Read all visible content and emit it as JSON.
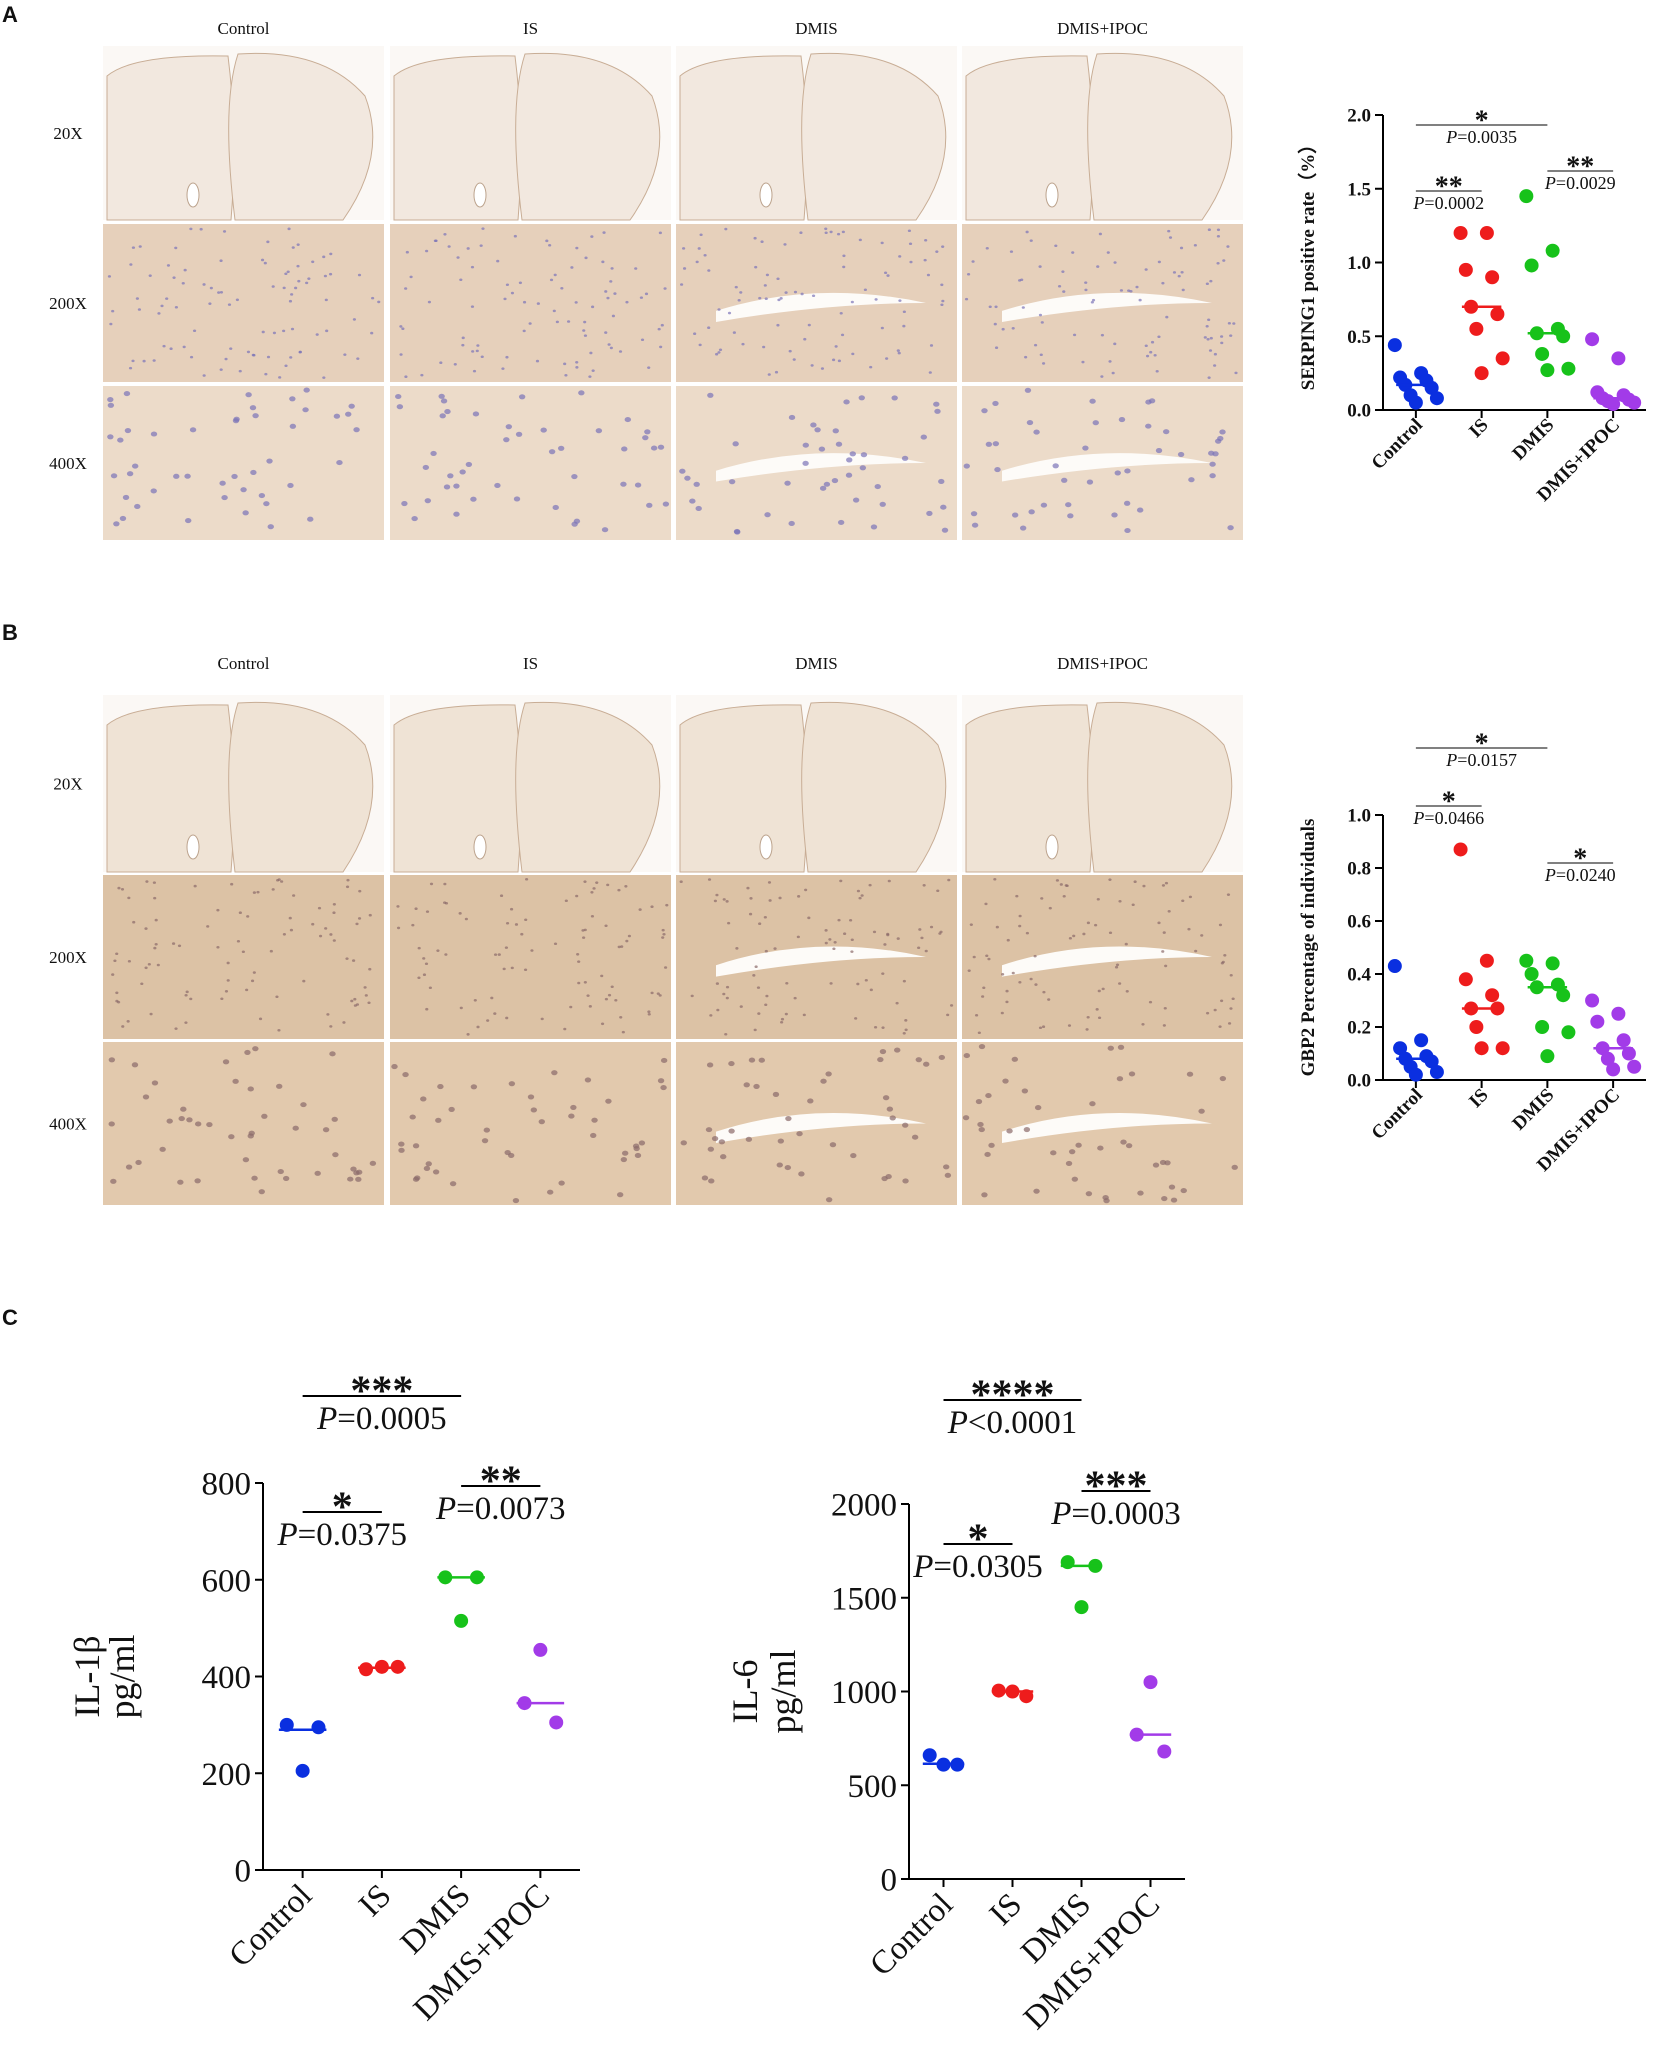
{
  "panels": [
    {
      "label": "A",
      "columns": [
        "Control",
        "IS",
        "DMIS",
        "DMIS+IPOC"
      ],
      "rows": [
        "20X",
        "200X",
        "400X"
      ]
    },
    {
      "label": "B",
      "columns": [
        "Control",
        "IS",
        "DMIS",
        "DMIS+IPOC"
      ],
      "rows": [
        "20X",
        "200X",
        "400X"
      ]
    },
    {
      "label": "C"
    }
  ],
  "chart_data": [
    {
      "type": "dot",
      "ylabel": [
        "SERPING1 positive rate（%）"
      ],
      "categories": [
        "Control",
        "IS",
        "DMIS",
        "DMIS+IPOC"
      ],
      "colors": [
        "#0a2fe0",
        "#ee1c1c",
        "#17c21a",
        "#a23be8"
      ],
      "values": [
        [
          0.44,
          0.25,
          0.22,
          0.2,
          0.17,
          0.15,
          0.1,
          0.08,
          0.05
        ],
        [
          1.2,
          1.2,
          0.95,
          0.9,
          0.7,
          0.65,
          0.55,
          0.35,
          0.25
        ],
        [
          1.45,
          1.08,
          0.98,
          0.55,
          0.52,
          0.5,
          0.38,
          0.28,
          0.27
        ],
        [
          0.48,
          0.35,
          0.12,
          0.1,
          0.08,
          0.07,
          0.06,
          0.05,
          0.04
        ]
      ],
      "medians": [
        0.17,
        0.7,
        0.52,
        0.08
      ],
      "ylim": [
        0,
        2
      ],
      "yticks": [
        {
          "value": 0,
          "label": "0.0"
        },
        {
          "value": 0.5,
          "label": "0.5"
        },
        {
          "value": 1,
          "label": "1.0"
        },
        {
          "value": 1.5,
          "label": "1.5"
        },
        {
          "value": 2,
          "label": "2.0"
        }
      ],
      "annotations": [
        {
          "groups": [
            "Control",
            "DMIS"
          ],
          "stars": "*",
          "p": "P=0.0035"
        },
        {
          "groups": [
            "Control",
            "IS"
          ],
          "stars": "**",
          "p": "P=0.0002"
        },
        {
          "groups": [
            "DMIS",
            "DMIS+IPOC"
          ],
          "stars": "**",
          "p": "P=0.0029"
        }
      ]
    },
    {
      "type": "dot",
      "ylabel": [
        "GBP2 Percentage of individuals"
      ],
      "categories": [
        "Control",
        "IS",
        "DMIS",
        "DMIS+IPOC"
      ],
      "colors": [
        "#0a2fe0",
        "#ee1c1c",
        "#17c21a",
        "#a23be8"
      ],
      "values": [
        [
          0.43,
          0.15,
          0.12,
          0.09,
          0.08,
          0.07,
          0.05,
          0.03,
          0.02
        ],
        [
          0.87,
          0.45,
          0.38,
          0.32,
          0.27,
          0.27,
          0.2,
          0.12,
          0.12
        ],
        [
          0.45,
          0.44,
          0.4,
          0.36,
          0.35,
          0.32,
          0.2,
          0.18,
          0.09
        ],
        [
          0.3,
          0.25,
          0.22,
          0.15,
          0.12,
          0.1,
          0.08,
          0.05,
          0.04
        ]
      ],
      "medians": [
        0.08,
        0.27,
        0.35,
        0.12
      ],
      "ylim": [
        0,
        1
      ],
      "yticks": [
        {
          "value": 0,
          "label": "0.0"
        },
        {
          "value": 0.2,
          "label": "0.2"
        },
        {
          "value": 0.4,
          "label": "0.4"
        },
        {
          "value": 0.6,
          "label": "0.6"
        },
        {
          "value": 0.8,
          "label": "0.8"
        },
        {
          "value": 1,
          "label": "1.0"
        }
      ],
      "annotations": [
        {
          "groups": [
            "Control",
            "DMIS"
          ],
          "stars": "*",
          "p": "P=0.0157"
        },
        {
          "groups": [
            "Control",
            "IS"
          ],
          "stars": "*",
          "p": "P=0.0466"
        },
        {
          "groups": [
            "DMIS",
            "DMIS+IPOC"
          ],
          "stars": "*",
          "p": "P=0.0240"
        }
      ]
    },
    {
      "type": "dot",
      "ylabel": [
        "IL-1β",
        "pg/ml"
      ],
      "categories": [
        "Control",
        "IS",
        "DMIS",
        "DMIS+IPOC"
      ],
      "colors": [
        "#0a2fe0",
        "#ee1c1c",
        "#17c21a",
        "#a23be8"
      ],
      "values": [
        [
          300,
          295,
          205
        ],
        [
          415,
          420,
          420
        ],
        [
          605,
          605,
          515
        ],
        [
          345,
          305,
          455
        ]
      ],
      "medians": [
        290,
        418,
        605,
        345
      ],
      "ylim": [
        0,
        800
      ],
      "yticks": [
        0,
        200,
        400,
        600,
        800
      ],
      "annotations": [
        {
          "groups": [
            "Control",
            "DMIS"
          ],
          "stars": "***",
          "p": "P=0.0005"
        },
        {
          "groups": [
            "Control",
            "IS"
          ],
          "stars": "*",
          "p": "P=0.0375"
        },
        {
          "groups": [
            "DMIS",
            "DMIS+IPOC"
          ],
          "stars": "**",
          "p": "P=0.0073"
        }
      ]
    },
    {
      "type": "dot",
      "ylabel": [
        "IL-6",
        "pg/ml"
      ],
      "categories": [
        "Control",
        "IS",
        "DMIS",
        "DMIS+IPOC"
      ],
      "colors": [
        "#0a2fe0",
        "#ee1c1c",
        "#17c21a",
        "#a23be8"
      ],
      "values": [
        [
          660,
          610,
          610
        ],
        [
          1005,
          975,
          1000
        ],
        [
          1690,
          1670,
          1450
        ],
        [
          770,
          680,
          1050
        ]
      ],
      "medians": [
        615,
        1000,
        1670,
        770
      ],
      "ylim": [
        0,
        2000
      ],
      "yticks": [
        0,
        500,
        1000,
        1500,
        2000
      ],
      "annotations": [
        {
          "groups": [
            "Control",
            "DMIS"
          ],
          "stars": "****",
          "p": "P<0.0001"
        },
        {
          "groups": [
            "Control",
            "IS"
          ],
          "stars": "*",
          "p": "P=0.0305"
        },
        {
          "groups": [
            "DMIS",
            "DMIS+IPOC"
          ],
          "stars": "***",
          "p": "P=0.0003"
        }
      ]
    }
  ]
}
